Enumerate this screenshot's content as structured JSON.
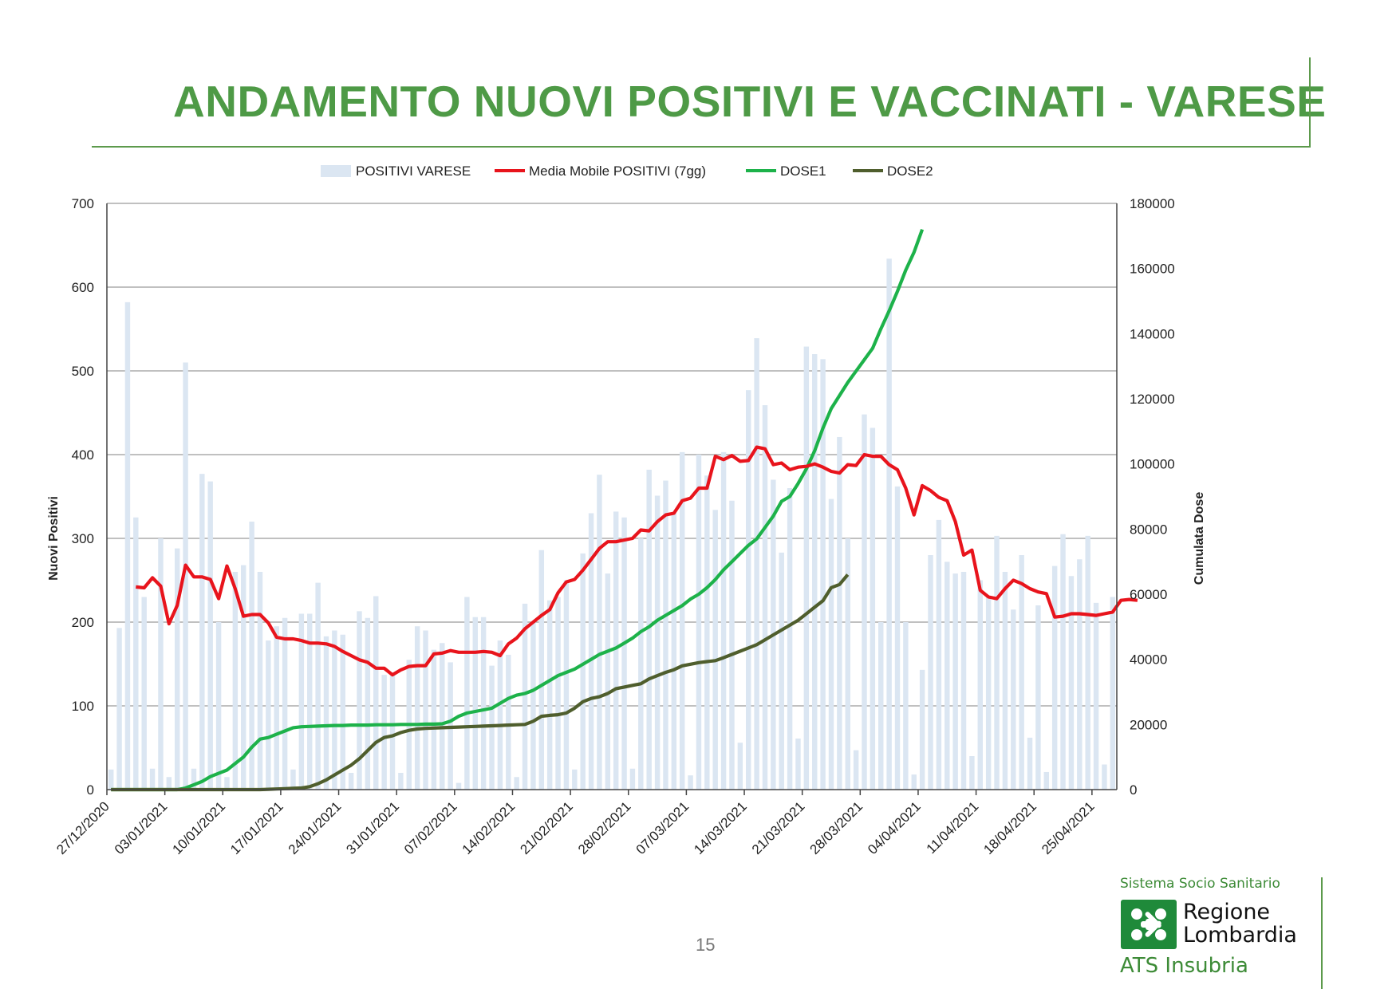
{
  "title": "ANDAMENTO NUOVI POSITIVI E VACCINATI - VARESE",
  "page_number": "15",
  "logo": {
    "top_text": "Sistema Socio Sanitario",
    "region_line1": "Regione",
    "region_line2": "Lombardia",
    "agency": "ATS Insubria"
  },
  "colors": {
    "title": "#4e9a46",
    "bars": "#dbe6f2",
    "moving_avg": "#e8141c",
    "dose1": "#1db24a",
    "dose2": "#4f5e2d"
  },
  "chart_data": {
    "type": "bar+line",
    "xlabel": "",
    "ylabel_left": "Nuovi Positivi",
    "ylabel_right": "Cumulata Dose",
    "ylim_left": [
      0,
      700
    ],
    "yticks_left": [
      "0",
      "100",
      "200",
      "300",
      "400",
      "500",
      "600",
      "700"
    ],
    "ylim_right": [
      0,
      180000
    ],
    "yticks_right": [
      "0",
      "20000",
      "40000",
      "60000",
      "80000",
      "100000",
      "120000",
      "140000",
      "160000",
      "180000"
    ],
    "x_ticks": [
      "27/12/2020",
      "03/01/2021",
      "10/01/2021",
      "17/01/2021",
      "24/01/2021",
      "31/01/2021",
      "07/02/2021",
      "14/02/2021",
      "21/02/2021",
      "28/02/2021",
      "07/03/2021",
      "14/03/2021",
      "21/03/2021",
      "28/03/2021",
      "04/04/2021",
      "11/04/2021",
      "18/04/2021",
      "25/04/2021"
    ],
    "start_date": "27/12/2020",
    "legend": [
      "POSITIVI VARESE",
      "Media Mobile POSITIVI (7gg)",
      "DOSE1",
      "DOSE2"
    ],
    "legend_position": "top",
    "grid": true,
    "series": [
      {
        "name": "POSITIVI VARESE",
        "axis": "left",
        "kind": "bar",
        "values": [
          24,
          193,
          582,
          325,
          230,
          25,
          300,
          15,
          288,
          510,
          25,
          377,
          368,
          200,
          15,
          260,
          268,
          320,
          260,
          178,
          195,
          205,
          24,
          210,
          210,
          247,
          183,
          190,
          185,
          20,
          213,
          205,
          231,
          137,
          140,
          20,
          155,
          195,
          190,
          167,
          175,
          152,
          8,
          230,
          206,
          206,
          148,
          178,
          161,
          15,
          222,
          200,
          286,
          226,
          230,
          250,
          24,
          282,
          330,
          376,
          258,
          332,
          325,
          25,
          300,
          382,
          351,
          369,
          330,
          403,
          17,
          400,
          375,
          334,
          403,
          345,
          56,
          477,
          539,
          459,
          370,
          283,
          360,
          61,
          529,
          520,
          514,
          347,
          421,
          300,
          47,
          448,
          432,
          200,
          634,
          362,
          200,
          18,
          143,
          280,
          322,
          272,
          258,
          260,
          40,
          250,
          230,
          303,
          260,
          215,
          280,
          62,
          220,
          21,
          267,
          305,
          255,
          275,
          303,
          223,
          30,
          230
        ]
      },
      {
        "name": "Media Mobile POSITIVI (7gg)",
        "axis": "left",
        "kind": "line",
        "start_index": 3,
        "values": [
          242,
          241,
          253,
          243,
          198,
          220,
          268,
          254,
          254,
          251,
          228,
          267,
          240,
          207,
          209,
          209,
          199,
          182,
          180,
          180,
          178,
          175,
          175,
          174,
          171,
          165,
          160,
          155,
          152,
          145,
          145,
          137,
          143,
          147,
          148,
          148,
          162,
          163,
          166,
          164,
          164,
          164,
          165,
          164,
          160,
          174,
          181,
          192,
          200,
          208,
          215,
          235,
          248,
          251,
          262,
          275,
          288,
          296,
          296,
          298,
          300,
          310,
          309,
          320,
          328,
          330,
          345,
          348,
          360,
          360,
          398,
          394,
          399,
          392,
          393,
          409,
          407,
          388,
          390,
          382,
          385,
          386,
          389,
          385,
          380,
          378,
          388,
          387,
          400,
          398,
          398,
          388,
          382,
          360,
          328,
          363,
          357,
          349,
          345,
          320,
          280,
          286,
          238,
          230,
          228,
          240,
          250,
          246,
          240,
          236,
          234,
          206,
          207,
          210,
          210,
          209,
          208,
          210,
          212,
          226,
          227,
          226
        ]
      },
      {
        "name": "DOSE1",
        "axis": "right",
        "kind": "line",
        "values": [
          0,
          0,
          0,
          0,
          0,
          0,
          0,
          0,
          0,
          500,
          1500,
          2500,
          4000,
          5000,
          6000,
          8000,
          10000,
          13000,
          15500,
          16000,
          17000,
          18000,
          19000,
          19300,
          19400,
          19500,
          19600,
          19700,
          19700,
          19800,
          19800,
          19800,
          19900,
          19900,
          19900,
          20000,
          20000,
          20000,
          20100,
          20100,
          20200,
          21000,
          22500,
          23500,
          24000,
          24500,
          25000,
          26500,
          28000,
          29000,
          29500,
          30500,
          32000,
          33500,
          35000,
          36000,
          37000,
          38500,
          40000,
          41500,
          42500,
          43500,
          45000,
          46500,
          48500,
          50000,
          52000,
          53500,
          55000,
          56500,
          58500,
          60000,
          62000,
          64500,
          67500,
          70000,
          72500,
          75000,
          77000,
          80500,
          84000,
          88500,
          90000,
          94000,
          98500,
          104000,
          111000,
          117000,
          121000,
          125000,
          128500,
          132000,
          135500,
          141500,
          147000,
          153000,
          159500,
          165000,
          172000
        ]
      },
      {
        "name": "DOSE2",
        "axis": "right",
        "kind": "line",
        "values": [
          0,
          0,
          0,
          0,
          0,
          0,
          0,
          0,
          0,
          0,
          0,
          0,
          0,
          0,
          0,
          0,
          0,
          0,
          0,
          100,
          200,
          300,
          400,
          500,
          900,
          1800,
          3000,
          4500,
          6000,
          7500,
          9500,
          12000,
          14500,
          16000,
          16500,
          17500,
          18200,
          18600,
          18800,
          18900,
          19000,
          19100,
          19200,
          19300,
          19400,
          19500,
          19600,
          19700,
          19800,
          19900,
          20000,
          21000,
          22500,
          22800,
          23000,
          23500,
          25000,
          27000,
          28000,
          28500,
          29500,
          31000,
          31500,
          32000,
          32500,
          34000,
          35000,
          36000,
          36800,
          38000,
          38500,
          39000,
          39300,
          39600,
          40500,
          41500,
          42500,
          43500,
          44500,
          46000,
          47500,
          49000,
          50500,
          52000,
          54000,
          56000,
          58000,
          62000,
          63000,
          66000
        ]
      }
    ]
  }
}
